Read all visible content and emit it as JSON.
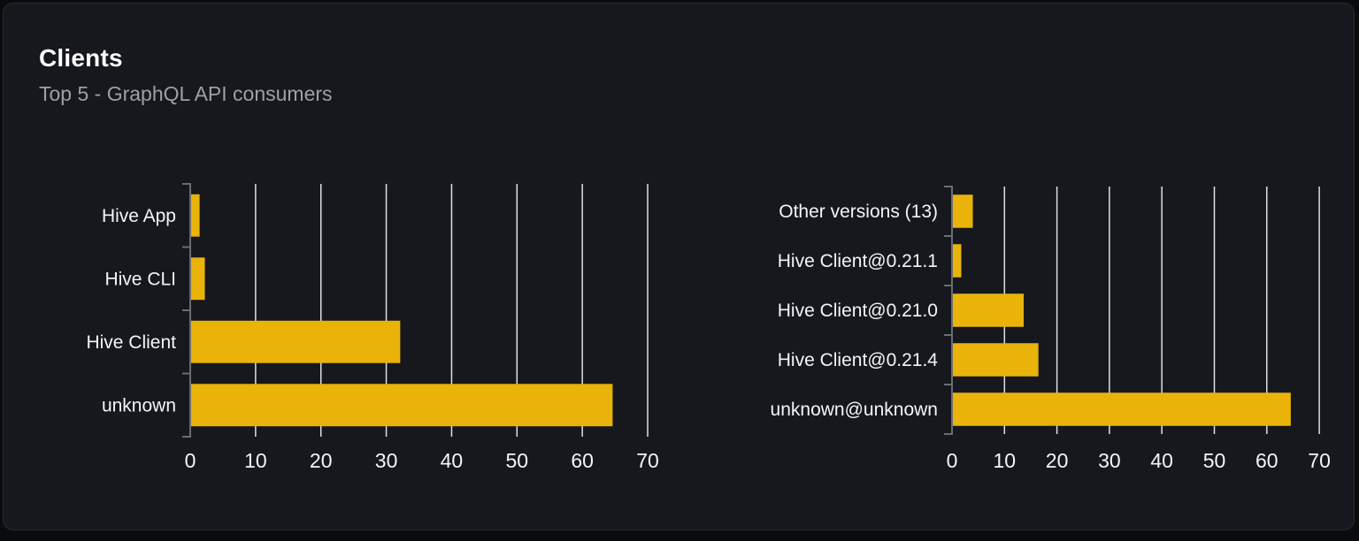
{
  "header": {
    "title": "Clients",
    "subtitle": "Top 5 - GraphQL API consumers"
  },
  "colors": {
    "bar": "#e9b30a",
    "card_bg": "#16181d",
    "page_bg": "#0a0b0d",
    "grid": "#dde1e7",
    "axis": "#696d74",
    "category_label": "#f4f5f6",
    "tick_label": "#f4f5f6",
    "title": "#ffffff",
    "subtitle": "#9aa1a9"
  },
  "chart_data": [
    {
      "type": "bar",
      "orientation": "horizontal",
      "title": "",
      "xlabel": "",
      "ylabel": "",
      "grid": true,
      "legend": false,
      "categories": [
        "Hive App",
        "Hive CLI",
        "Hive Client",
        "unknown"
      ],
      "values": [
        1.3,
        2.1,
        32,
        64.5
      ],
      "x_ticks": [
        0,
        10,
        20,
        30,
        40,
        50,
        60,
        70
      ],
      "xlim": [
        0,
        75
      ]
    },
    {
      "type": "bar",
      "orientation": "horizontal",
      "title": "",
      "xlabel": "",
      "ylabel": "",
      "grid": true,
      "legend": false,
      "categories": [
        "Other versions (13)",
        "Hive Client@0.21.1",
        "Hive Client@0.21.0",
        "Hive Client@0.21.4",
        "unknown@unknown"
      ],
      "values": [
        3.8,
        1.6,
        13.5,
        16.3,
        64.4
      ],
      "x_ticks": [
        0,
        10,
        20,
        30,
        40,
        50,
        60,
        70
      ],
      "xlim": [
        0,
        75
      ]
    }
  ]
}
